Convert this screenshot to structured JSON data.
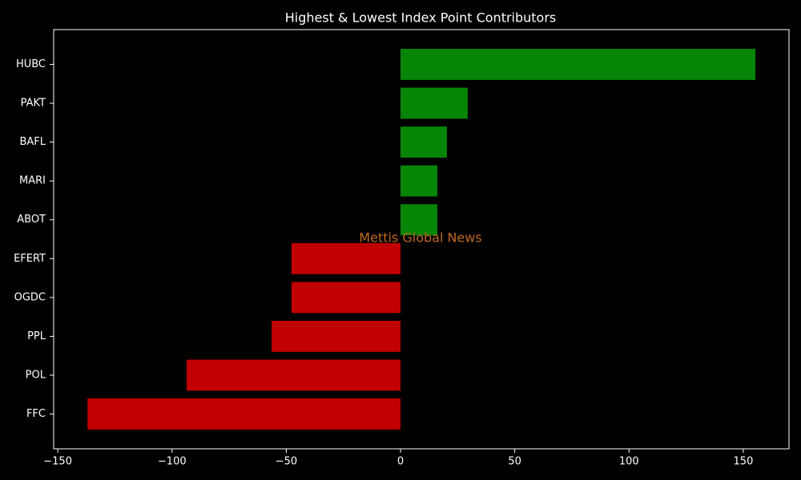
{
  "chart_data": {
    "type": "barh",
    "title": "Highest & Lowest Index Point Contributors",
    "annotation": "Mettis Global News",
    "categories": [
      "HUBC",
      "PAKT",
      "BAFL",
      "MARI",
      "ABOT",
      "EFERT",
      "OGDC",
      "PPL",
      "POL",
      "FFC"
    ],
    "values": [
      155.3,
      29.4,
      20.3,
      16.1,
      16.1,
      -47.7,
      -47.7,
      -56.4,
      -93.6,
      -137.0
    ],
    "colors": [
      "#078507",
      "#078507",
      "#078507",
      "#078507",
      "#078507",
      "#c00000",
      "#c00000",
      "#c00000",
      "#c00000",
      "#c00000"
    ],
    "xlim": [
      -151.8,
      170
    ],
    "xticks": [
      {
        "value": -150,
        "label": "−150"
      },
      {
        "value": -100,
        "label": "−100"
      },
      {
        "value": -50,
        "label": "−50"
      },
      0,
      50,
      100,
      150
    ],
    "grid": false
  }
}
